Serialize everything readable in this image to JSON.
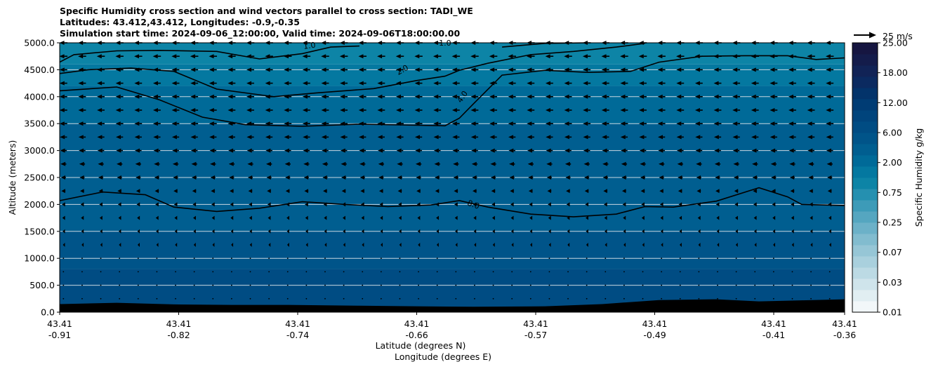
{
  "chart_data": {
    "type": "heatmap",
    "title_lines": [
      "Specific Humidity cross section and wind vectors parallel to cross section: TADI_WE",
      "Latitudes: 43.412,43.412, Longitudes: -0.9,-0.35",
      "Simulation start time: 2024-09-06_12:00:00, Valid time: 2024-09-06T18:00:00.00"
    ],
    "ylabel": "Altitude (meters)",
    "xlabel_lines": [
      "Latitude (degrees N)",
      "Longitude (degrees E)"
    ],
    "ylim": [
      0,
      5000
    ],
    "y_ticks": [
      "0.0",
      "500.0",
      "1000.0",
      "1500.0",
      "2000.0",
      "2500.0",
      "3000.0",
      "3500.0",
      "4000.0",
      "4500.0",
      "5000.0"
    ],
    "x_ticks": [
      {
        "lat": "43.41",
        "lon": "-0.91"
      },
      {
        "lat": "43.41",
        "lon": "-0.82"
      },
      {
        "lat": "43.41",
        "lon": "-0.74"
      },
      {
        "lat": "43.41",
        "lon": "-0.66"
      },
      {
        "lat": "43.41",
        "lon": "-0.57"
      },
      {
        "lat": "43.41",
        "lon": "-0.49"
      },
      {
        "lat": "43.41",
        "lon": "-0.41"
      },
      {
        "lat": "43.41",
        "lon": "-0.36"
      }
    ],
    "grid": "horizontal",
    "colorbar": {
      "label": "Specific Humidity g/kg",
      "tick_labels": [
        "0.01",
        "0.03",
        "0.07",
        "0.25",
        "0.75",
        "2.00",
        "6.00",
        "12.00",
        "18.00",
        "25.00"
      ],
      "colors": [
        "#f2f7f9",
        "#e1eef2",
        "#cfe4eb",
        "#bcdae4",
        "#a9d0dd",
        "#96c6d6",
        "#82bccf",
        "#6cb1c8",
        "#55a6c0",
        "#3d9bb8",
        "#2590b0",
        "#0d84a6",
        "#0478a0",
        "#006a98",
        "#005e90",
        "#005489",
        "#004c83",
        "#00447c",
        "#003c74",
        "#03336a",
        "#0b2a60",
        "#112356",
        "#141c4b",
        "#161641"
      ]
    },
    "quiver_key": {
      "label": "25 m/s",
      "speed_ms": 25
    },
    "contour_labels": [
      "1.0",
      "1.0",
      "2.0",
      "4.0",
      "8.0"
    ],
    "contours": [
      {
        "level": 1.0,
        "points": [
          [
            -0.91,
            4640
          ],
          [
            -0.9,
            4780
          ],
          [
            -0.87,
            4850
          ],
          [
            -0.84,
            4860
          ],
          [
            -0.8,
            4840
          ],
          [
            -0.77,
            4700
          ],
          [
            -0.74,
            4800
          ],
          [
            -0.72,
            4920
          ],
          [
            -0.7,
            4940
          ]
        ]
      },
      {
        "level": 1.0,
        "points": [
          [
            -0.6,
            4920
          ],
          [
            -0.57,
            4990
          ],
          [
            -0.54,
            5000
          ]
        ]
      },
      {
        "level": 2.0,
        "points": [
          [
            -0.91,
            4430
          ],
          [
            -0.89,
            4500
          ],
          [
            -0.86,
            4530
          ],
          [
            -0.83,
            4470
          ],
          [
            -0.8,
            4140
          ],
          [
            -0.76,
            4000
          ],
          [
            -0.73,
            4070
          ],
          [
            -0.69,
            4150
          ],
          [
            -0.66,
            4300
          ],
          [
            -0.64,
            4380
          ],
          [
            -0.63,
            4490
          ],
          [
            -0.61,
            4620
          ],
          [
            -0.58,
            4780
          ],
          [
            -0.55,
            4840
          ],
          [
            -0.52,
            4920
          ],
          [
            -0.5,
            4990
          ]
        ]
      },
      {
        "level": 4.0,
        "points": [
          [
            -0.91,
            4110
          ],
          [
            -0.87,
            4180
          ],
          [
            -0.84,
            3940
          ],
          [
            -0.81,
            3620
          ],
          [
            -0.78,
            3480
          ],
          [
            -0.74,
            3450
          ],
          [
            -0.7,
            3490
          ],
          [
            -0.66,
            3470
          ],
          [
            -0.64,
            3460
          ],
          [
            -0.63,
            3600
          ],
          [
            -0.62,
            3870
          ],
          [
            -0.6,
            4400
          ],
          [
            -0.57,
            4490
          ],
          [
            -0.54,
            4450
          ],
          [
            -0.51,
            4470
          ],
          [
            -0.49,
            4640
          ],
          [
            -0.46,
            4750
          ],
          [
            -0.43,
            4760
          ],
          [
            -0.4,
            4760
          ],
          [
            -0.38,
            4690
          ],
          [
            -0.36,
            4720
          ]
        ]
      },
      {
        "level": 8.0,
        "points": [
          [
            -0.91,
            2070
          ],
          [
            -0.88,
            2230
          ],
          [
            -0.85,
            2180
          ],
          [
            -0.83,
            1950
          ],
          [
            -0.8,
            1870
          ],
          [
            -0.77,
            1930
          ],
          [
            -0.74,
            2050
          ],
          [
            -0.71,
            2000
          ],
          [
            -0.68,
            1960
          ],
          [
            -0.65,
            1990
          ],
          [
            -0.63,
            2070
          ],
          [
            -0.61,
            1950
          ],
          [
            -0.58,
            1820
          ],
          [
            -0.55,
            1770
          ],
          [
            -0.52,
            1820
          ],
          [
            -0.5,
            1960
          ],
          [
            -0.48,
            1950
          ],
          [
            -0.45,
            2060
          ],
          [
            -0.42,
            2310
          ],
          [
            -0.4,
            2140
          ],
          [
            -0.39,
            2000
          ],
          [
            -0.36,
            1980
          ]
        ]
      }
    ],
    "terrain_m": [
      [
        -0.91,
        150
      ],
      [
        -0.87,
        175
      ],
      [
        -0.83,
        145
      ],
      [
        -0.79,
        135
      ],
      [
        -0.75,
        135
      ],
      [
        -0.7,
        120
      ],
      [
        -0.66,
        110
      ],
      [
        -0.62,
        100
      ],
      [
        -0.57,
        110
      ],
      [
        -0.53,
        150
      ],
      [
        -0.49,
        225
      ],
      [
        -0.45,
        240
      ],
      [
        -0.42,
        200
      ],
      [
        -0.39,
        220
      ],
      [
        -0.36,
        240
      ]
    ],
    "wind_profile_u_ms": [
      [
        250,
        0
      ],
      [
        500,
        -0.3
      ],
      [
        750,
        -0.5
      ],
      [
        1000,
        -0.8
      ],
      [
        1250,
        -1.2
      ],
      [
        1500,
        -1.8
      ],
      [
        1750,
        -2.5
      ],
      [
        2000,
        -3.5
      ],
      [
        2250,
        -4.5
      ],
      [
        2500,
        -5.5
      ],
      [
        2750,
        -6.5
      ],
      [
        3000,
        -7.5
      ],
      [
        3250,
        -8
      ],
      [
        3500,
        -8.5
      ],
      [
        3750,
        -8.5
      ],
      [
        4000,
        -8.5
      ],
      [
        4250,
        -8.5
      ],
      [
        4500,
        -8.5
      ],
      [
        4750,
        -9
      ],
      [
        5000,
        -9
      ]
    ]
  }
}
